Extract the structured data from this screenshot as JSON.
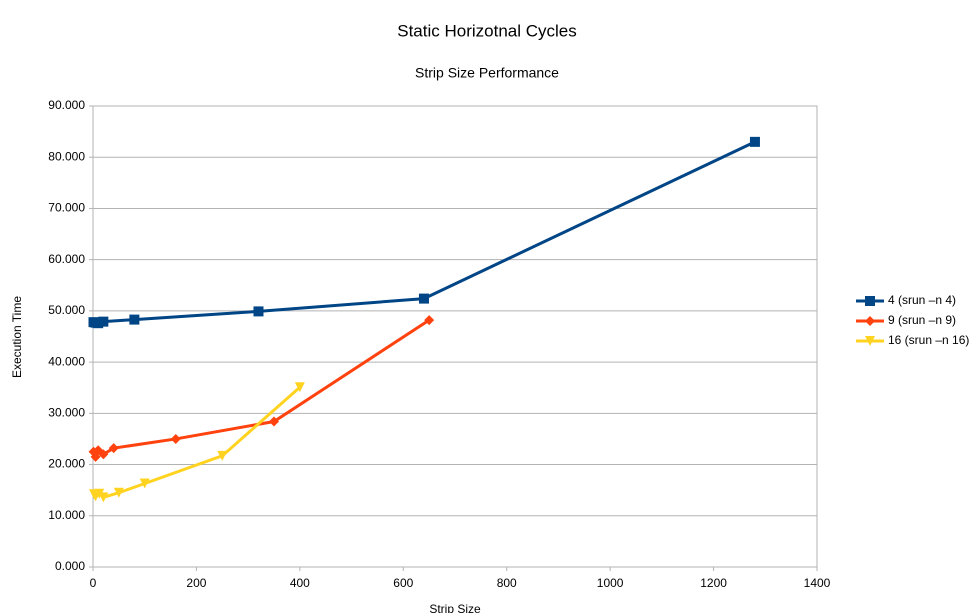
{
  "chart_data": {
    "type": "line",
    "title": "Static Horizotnal Cycles",
    "subtitle": "Strip Size Performance",
    "x_label": "Strip Size",
    "y_label": "Execution Time",
    "xlim": [
      0,
      1400
    ],
    "xticks": [
      0,
      200,
      400,
      600,
      800,
      1000,
      1200,
      1400
    ],
    "ylim": [
      0,
      90
    ],
    "yticks": [
      {
        "value": 0,
        "label": "0.000"
      },
      {
        "value": 10,
        "label": "10.000"
      },
      {
        "value": 20,
        "label": "20.000"
      },
      {
        "value": 30,
        "label": "30.000"
      },
      {
        "value": 40,
        "label": "40.000"
      },
      {
        "value": 50,
        "label": "50.000"
      },
      {
        "value": 60,
        "label": "60.000"
      },
      {
        "value": 70,
        "label": "70.000"
      },
      {
        "value": 80,
        "label": "80.000"
      },
      {
        "value": 90,
        "label": "90.000"
      }
    ],
    "grid": true,
    "legend": "right",
    "series": [
      {
        "name": "4 (srun –n 4)",
        "color": "#004586",
        "marker": "square",
        "x": [
          1,
          5,
          10,
          20,
          80,
          320,
          640,
          1280
        ],
        "values": [
          47.8,
          47.7,
          47.6,
          47.9,
          48.3,
          49.9,
          52.4,
          83.0
        ]
      },
      {
        "name": "9 (srun –n 9)",
        "color": "#ff420e",
        "marker": "diamond",
        "x": [
          1,
          5,
          10,
          20,
          40,
          160,
          350,
          650
        ],
        "values": [
          22.5,
          21.5,
          22.8,
          22.0,
          23.2,
          25.0,
          28.4,
          48.2
        ]
      },
      {
        "name": "16 (srun –n 16)",
        "color": "#ffd320",
        "marker": "triangle-down",
        "x": [
          2,
          5,
          12,
          20,
          50,
          100,
          250,
          400
        ],
        "values": [
          14.2,
          13.8,
          14.3,
          13.6,
          14.5,
          16.3,
          21.7,
          35.1
        ]
      }
    ]
  }
}
